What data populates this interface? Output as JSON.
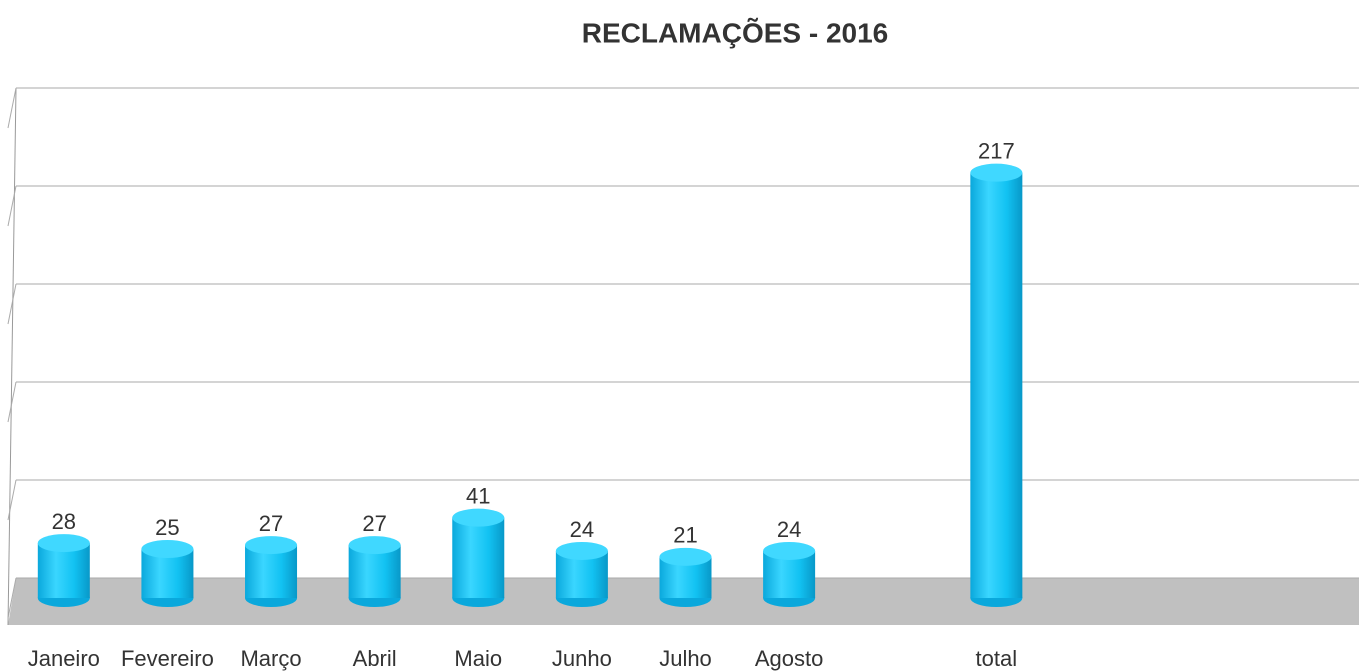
{
  "chart_data": {
    "type": "bar",
    "title": "RECLAMAÇÕES - 2016",
    "categories": [
      "Janeiro",
      "Fevereiro",
      "Março",
      "Abril",
      "Maio",
      "Junho",
      "Julho",
      "Agosto",
      null,
      "total",
      null,
      null,
      null
    ],
    "values": [
      28,
      25,
      27,
      27,
      41,
      24,
      21,
      24,
      null,
      217,
      null,
      null,
      null
    ],
    "color": "#1ec8f5",
    "ylim": [
      0,
      250
    ],
    "yticks": [
      0,
      50,
      100,
      150,
      200,
      250
    ],
    "grid": true
  }
}
